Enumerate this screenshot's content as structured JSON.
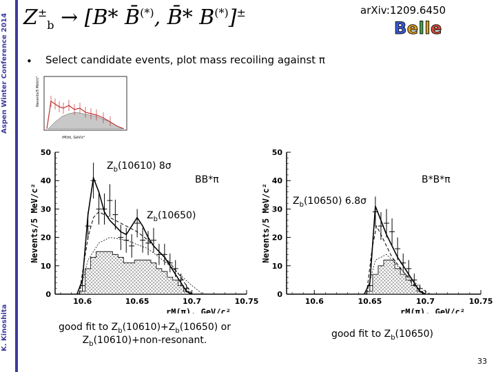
{
  "sidebar": {
    "conference": "Aspen Winter Conference 2014",
    "author": "K. Kinoshita"
  },
  "header": {
    "title_z": "Z",
    "title_z_sup": "±",
    "title_z_sub": "b",
    "title_arrow": "→",
    "title_rest": "[B* B̄",
    "title_rest_sup": "(*)",
    "title_comma": ", B̄* B",
    "title_rest2_sup": "(*)",
    "title_close": "]",
    "title_close_sup": "±",
    "arxiv": "arXiv:1209.6450",
    "logo": "Belle",
    "logo_colors": [
      "#3a5bd9",
      "#e0a020",
      "#3aa84a",
      "#e0a020",
      "#d94a3a"
    ]
  },
  "bullet": {
    "marker": "•",
    "text": "Select candidate events, plot mass recoiling against π"
  },
  "left_plot": {
    "ann_zb1": "Z",
    "ann_zb1_sub": "b",
    "ann_zb1_rest": "(10610) 8σ",
    "ann_bbpi": "BB*π",
    "ann_zb2": "Z",
    "ann_zb2_sub": "b",
    "ann_zb2_rest": "(10650)",
    "caption_line1_a": "good fit to Z",
    "caption_line1_sub1": "b",
    "caption_line1_b": "(10610)+Z",
    "caption_line1_sub2": "b",
    "caption_line1_c": "(10650) or",
    "caption_line2_a": "Z",
    "caption_line2_sub": "b",
    "caption_line2_b": "(10610)+non-resonant."
  },
  "right_plot": {
    "ann_bbpi": "B*B*π",
    "ann_zb": "Z",
    "ann_zb_sub": "b",
    "ann_zb_rest": "(10650) 6.8σ",
    "caption_a": "good fit to Z",
    "caption_sub": "b",
    "caption_b": "(10650)"
  },
  "page_number": "33",
  "chart_data": [
    {
      "type": "bar",
      "title": "",
      "xlabel": "rM(π), GeV/c²",
      "ylabel": "Nevents/5 MeV/c²",
      "xlim": [
        10.575,
        10.75
      ],
      "ylim": [
        0,
        50
      ],
      "xticks": [
        "10.6",
        "10.65",
        "10.7",
        "10.75"
      ],
      "yticks": [
        "0",
        "10",
        "20",
        "30",
        "40",
        "50"
      ],
      "bin_width": 0.005,
      "bins_x": [
        10.6,
        10.605,
        10.61,
        10.615,
        10.62,
        10.625,
        10.63,
        10.635,
        10.64,
        10.645,
        10.65,
        10.655,
        10.66,
        10.665,
        10.67,
        10.675,
        10.68,
        10.685,
        10.69,
        10.695
      ],
      "data_points": [
        3,
        24,
        40,
        30,
        30,
        33,
        28,
        20,
        19,
        17,
        25,
        19,
        18,
        19,
        14,
        14,
        11,
        9,
        5,
        2
      ],
      "background_histogram": [
        1,
        9,
        13,
        15,
        15,
        15,
        14,
        13,
        11,
        11,
        12,
        12,
        12,
        11,
        9,
        8,
        6,
        5,
        3,
        1
      ],
      "curves": [
        "total fit",
        "Zb(10610)+Zb(10650)",
        "non-resonant"
      ]
    },
    {
      "type": "bar",
      "title": "",
      "xlabel": "rM(π), GeV/c²",
      "ylabel": "Nevents/5 MeV/c²",
      "xlim": [
        10.575,
        10.75
      ],
      "ylim": [
        0,
        50
      ],
      "xticks": [
        "10.6",
        "10.65",
        "10.7",
        "10.75"
      ],
      "yticks": [
        "0",
        "10",
        "20",
        "30",
        "40",
        "50"
      ],
      "bin_width": 0.005,
      "bins_x": [
        10.65,
        10.655,
        10.66,
        10.665,
        10.67,
        10.675,
        10.68,
        10.685,
        10.69,
        10.695
      ],
      "data_points": [
        3,
        29,
        24,
        25,
        22,
        16,
        11,
        9,
        5,
        2
      ],
      "background_histogram": [
        1,
        7,
        10,
        12,
        12,
        9,
        7,
        5,
        3,
        1
      ],
      "curves": [
        "total fit",
        "Zb(10650)",
        "non-resonant"
      ]
    }
  ]
}
